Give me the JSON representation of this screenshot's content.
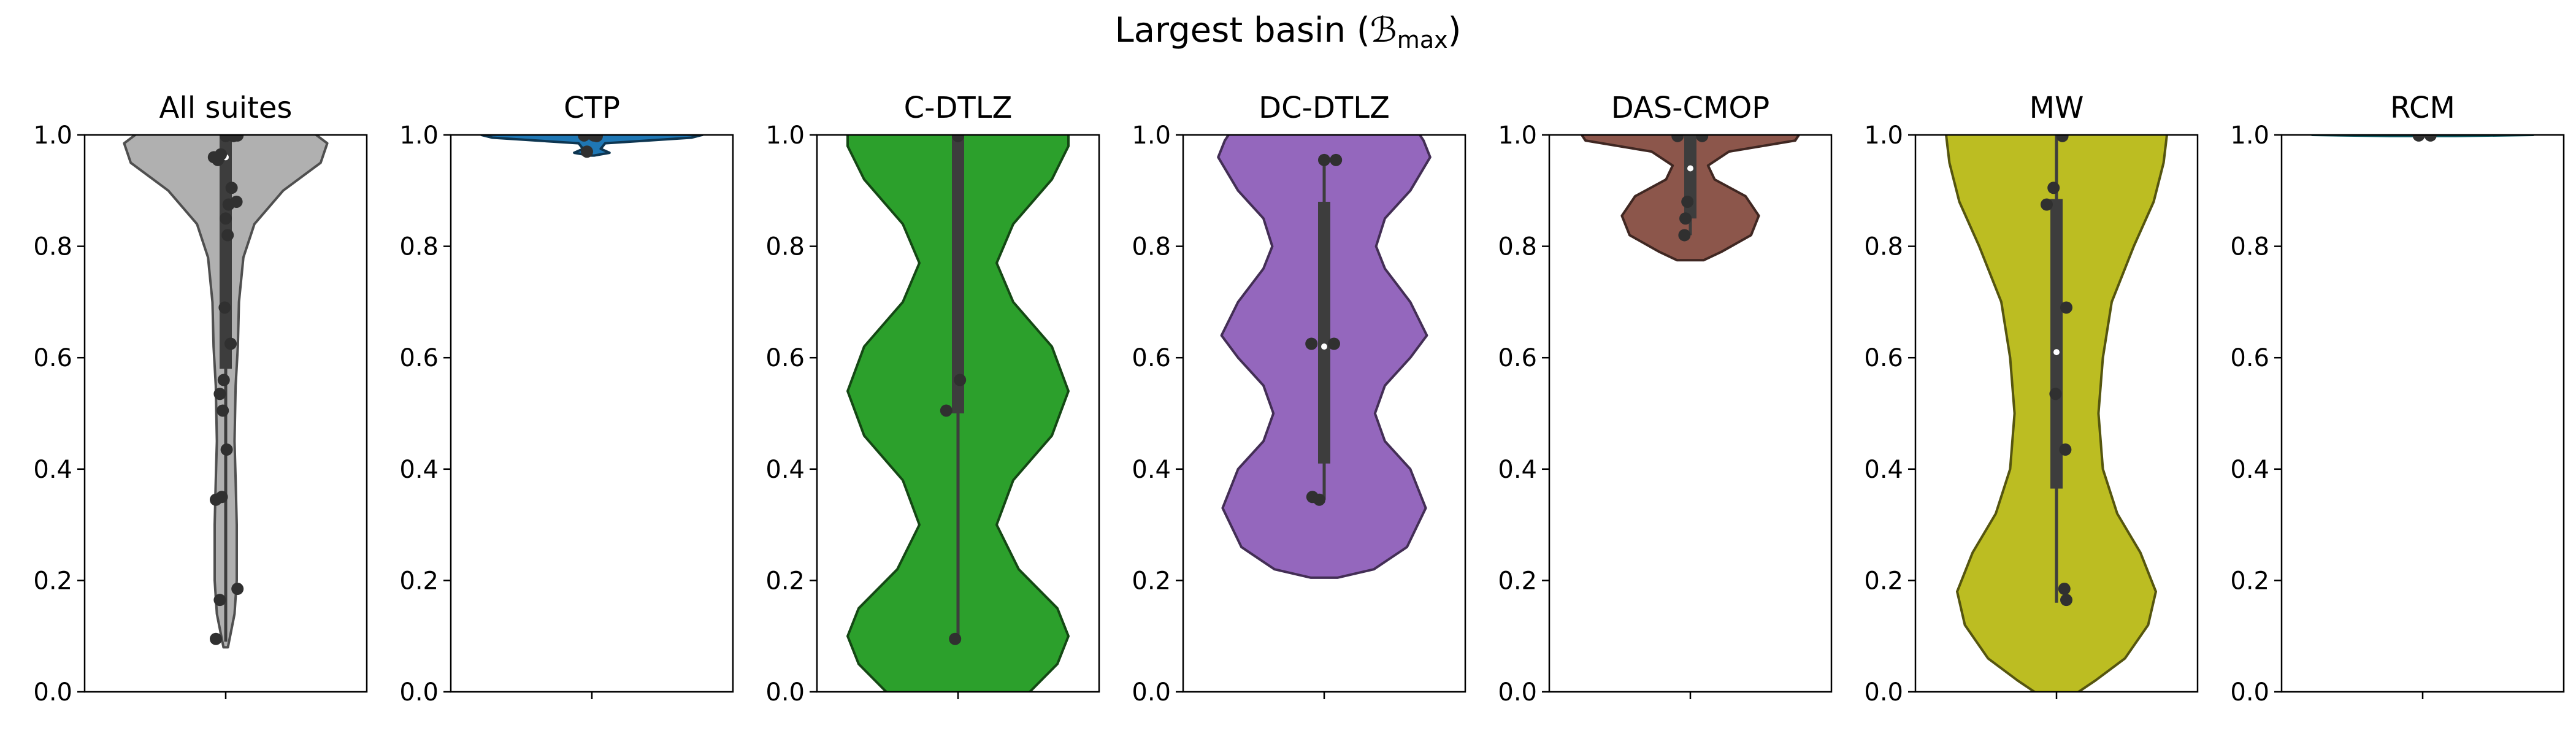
{
  "figure": {
    "title_main": "Largest basin (",
    "title_math": "ℬ",
    "title_sub": "max",
    "title_close": ")"
  },
  "chart_data": [
    {
      "type": "violin",
      "title": "All suites",
      "ylim": [
        0,
        1
      ],
      "yticks": [
        "0.0",
        "0.2",
        "0.4",
        "0.6",
        "0.8",
        "1.0"
      ],
      "color": "#b0b0b0",
      "box": {
        "q1": 0.58,
        "median": 0.96,
        "q3": 1.0,
        "whisker_low": 0.09,
        "whisker_high": 1.0
      },
      "density": [
        [
          0.08,
          0.02
        ],
        [
          0.14,
          0.08
        ],
        [
          0.2,
          0.1
        ],
        [
          0.3,
          0.1
        ],
        [
          0.38,
          0.09
        ],
        [
          0.45,
          0.08
        ],
        [
          0.55,
          0.09
        ],
        [
          0.62,
          0.11
        ],
        [
          0.7,
          0.12
        ],
        [
          0.78,
          0.16
        ],
        [
          0.84,
          0.26
        ],
        [
          0.9,
          0.52
        ],
        [
          0.95,
          0.86
        ],
        [
          0.985,
          0.92
        ],
        [
          1.0,
          0.82
        ],
        [
          1.02,
          0.65
        ]
      ],
      "points": [
        [
          -0.1,
          0.095
        ],
        [
          -0.06,
          0.165
        ],
        [
          0.12,
          0.185
        ],
        [
          -0.1,
          0.345
        ],
        [
          -0.04,
          0.35
        ],
        [
          0.01,
          0.435
        ],
        [
          -0.03,
          0.505
        ],
        [
          -0.06,
          0.535
        ],
        [
          -0.02,
          0.56
        ],
        [
          0.05,
          0.625
        ],
        [
          -0.01,
          0.69
        ],
        [
          0.02,
          0.82
        ],
        [
          0.0,
          0.85
        ],
        [
          0.03,
          0.875
        ],
        [
          0.11,
          0.88
        ],
        [
          0.06,
          0.905
        ],
        [
          -0.08,
          0.955
        ],
        [
          -0.12,
          0.96
        ],
        [
          -0.05,
          0.965
        ],
        [
          0.0,
          0.998
        ],
        [
          0.08,
          0.998
        ],
        [
          0.12,
          0.999
        ]
      ]
    },
    {
      "type": "violin",
      "title": "CTP",
      "ylim": [
        0,
        1
      ],
      "yticks": [
        "0.0",
        "0.2",
        "0.4",
        "0.6",
        "0.8",
        "1.0"
      ],
      "color": "#1f77b4",
      "box": {
        "q1": 1.0,
        "median": 1.0,
        "q3": 1.0,
        "whisker_low": 1.0,
        "whisker_high": 1.0
      },
      "density": [
        [
          0.963,
          0.02
        ],
        [
          0.968,
          0.16
        ],
        [
          0.975,
          0.08
        ],
        [
          0.985,
          0.12
        ],
        [
          0.995,
          0.9
        ],
        [
          1.0,
          1.0
        ],
        [
          1.003,
          0.4
        ]
      ],
      "points": [
        [
          -0.05,
          0.97
        ],
        [
          0.05,
          0.998
        ],
        [
          -0.08,
          0.999
        ],
        [
          0.02,
          0.999
        ]
      ]
    },
    {
      "type": "violin",
      "title": "C-DTLZ",
      "ylim": [
        0,
        1
      ],
      "yticks": [
        "0.0",
        "0.2",
        "0.4",
        "0.6",
        "0.8",
        "1.0"
      ],
      "color": "#2ca02c",
      "box": {
        "q1": 0.5,
        "median": 1.0,
        "q3": 1.0,
        "whisker_low": 0.09,
        "whisker_high": 1.0
      },
      "density": [
        [
          -0.1,
          0.2
        ],
        [
          0.0,
          0.65
        ],
        [
          0.05,
          0.9
        ],
        [
          0.1,
          1.0
        ],
        [
          0.15,
          0.9
        ],
        [
          0.22,
          0.55
        ],
        [
          0.3,
          0.35
        ],
        [
          0.38,
          0.5
        ],
        [
          0.46,
          0.85
        ],
        [
          0.54,
          1.0
        ],
        [
          0.62,
          0.85
        ],
        [
          0.7,
          0.5
        ],
        [
          0.77,
          0.35
        ],
        [
          0.84,
          0.5
        ],
        [
          0.92,
          0.85
        ],
        [
          0.98,
          1.0
        ],
        [
          1.05,
          1.0
        ]
      ],
      "points": [
        [
          -0.03,
          0.095
        ],
        [
          -0.12,
          0.505
        ],
        [
          0.02,
          0.56
        ],
        [
          0.0,
          0.998
        ]
      ]
    },
    {
      "type": "violin",
      "title": "DC-DTLZ",
      "ylim": [
        0,
        1
      ],
      "yticks": [
        "0.0",
        "0.2",
        "0.4",
        "0.6",
        "0.8",
        "1.0"
      ],
      "color": "#9467bd",
      "box": {
        "q1": 0.41,
        "median": 0.62,
        "q3": 0.88,
        "whisker_low": 0.345,
        "whisker_high": 0.955
      },
      "density": [
        [
          0.205,
          0.12
        ],
        [
          0.22,
          0.45
        ],
        [
          0.26,
          0.75
        ],
        [
          0.33,
          0.92
        ],
        [
          0.4,
          0.78
        ],
        [
          0.45,
          0.55
        ],
        [
          0.5,
          0.46
        ],
        [
          0.55,
          0.55
        ],
        [
          0.6,
          0.78
        ],
        [
          0.64,
          0.93
        ],
        [
          0.7,
          0.78
        ],
        [
          0.76,
          0.55
        ],
        [
          0.8,
          0.47
        ],
        [
          0.85,
          0.55
        ],
        [
          0.9,
          0.78
        ],
        [
          0.96,
          0.96
        ],
        [
          0.99,
          0.9
        ],
        [
          1.02,
          0.8
        ]
      ],
      "points": [
        [
          -0.12,
          0.35
        ],
        [
          -0.05,
          0.345
        ],
        [
          -0.13,
          0.625
        ],
        [
          0.1,
          0.625
        ],
        [
          0.0,
          0.955
        ],
        [
          0.12,
          0.955
        ]
      ]
    },
    {
      "type": "violin",
      "title": "DAS-CMOP",
      "ylim": [
        0,
        1
      ],
      "yticks": [
        "0.0",
        "0.2",
        "0.4",
        "0.6",
        "0.8",
        "1.0"
      ],
      "color": "#8c564b",
      "box": {
        "q1": 0.85,
        "median": 0.94,
        "q3": 1.0,
        "whisker_low": 0.82,
        "whisker_high": 1.0
      },
      "density": [
        [
          0.775,
          0.12
        ],
        [
          0.79,
          0.28
        ],
        [
          0.82,
          0.55
        ],
        [
          0.855,
          0.62
        ],
        [
          0.89,
          0.5
        ],
        [
          0.92,
          0.22
        ],
        [
          0.945,
          0.16
        ],
        [
          0.97,
          0.35
        ],
        [
          0.99,
          0.95
        ],
        [
          1.005,
          1.0
        ],
        [
          1.02,
          0.8
        ]
      ],
      "points": [
        [
          -0.06,
          0.82
        ],
        [
          -0.05,
          0.85
        ],
        [
          -0.03,
          0.88
        ],
        [
          -0.13,
          0.998
        ],
        [
          0.12,
          0.998
        ]
      ]
    },
    {
      "type": "violin",
      "title": "MW",
      "ylim": [
        0,
        1
      ],
      "yticks": [
        "0.0",
        "0.2",
        "0.4",
        "0.6",
        "0.8",
        "1.0"
      ],
      "color": "#bcbd22",
      "box": {
        "q1": 0.365,
        "median": 0.61,
        "q3": 0.885,
        "whisker_low": 0.16,
        "whisker_high": 1.0
      },
      "density": [
        [
          -0.02,
          0.05
        ],
        [
          0.02,
          0.35
        ],
        [
          0.06,
          0.62
        ],
        [
          0.12,
          0.83
        ],
        [
          0.18,
          0.9
        ],
        [
          0.25,
          0.76
        ],
        [
          0.32,
          0.55
        ],
        [
          0.4,
          0.42
        ],
        [
          0.5,
          0.38
        ],
        [
          0.6,
          0.42
        ],
        [
          0.7,
          0.5
        ],
        [
          0.8,
          0.7
        ],
        [
          0.88,
          0.88
        ],
        [
          0.95,
          0.97
        ],
        [
          1.0,
          1.0
        ],
        [
          1.03,
          0.9
        ]
      ],
      "points": [
        [
          0.1,
          0.165
        ],
        [
          0.08,
          0.185
        ],
        [
          0.09,
          0.435
        ],
        [
          -0.01,
          0.535
        ],
        [
          0.1,
          0.69
        ],
        [
          -0.1,
          0.875
        ],
        [
          -0.03,
          0.905
        ],
        [
          0.06,
          0.998
        ]
      ]
    },
    {
      "type": "violin",
      "title": "RCM",
      "ylim": [
        0,
        1
      ],
      "yticks": [
        "0.0",
        "0.2",
        "0.4",
        "0.6",
        "0.8",
        "1.0"
      ],
      "color": "#17becf",
      "box": {
        "q1": 1.0,
        "median": 1.0,
        "q3": 1.0,
        "whisker_low": 1.0,
        "whisker_high": 1.0
      },
      "density": [
        [
          0.998,
          0.3
        ],
        [
          1.0,
          1.0
        ],
        [
          1.002,
          0.3
        ]
      ],
      "points": [
        [
          -0.04,
          0.999
        ],
        [
          0.08,
          0.999
        ]
      ]
    }
  ]
}
